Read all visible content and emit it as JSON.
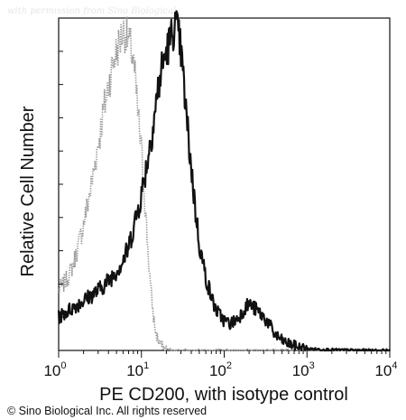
{
  "watermark": "with permission from Sino Biological",
  "copyright": "© Sino Biological Inc. All rights reserved",
  "colors": {
    "isotype": "#9a9a9a",
    "cd200": "#111111",
    "axis": "#111111"
  },
  "chart_data": {
    "type": "line",
    "title": "",
    "xlabel": "PE CD200, with isotype control",
    "ylabel": "Relative Cell Number",
    "x_scale": "log",
    "xlim": [
      1,
      10000
    ],
    "ylim": [
      0,
      100
    ],
    "grid": false,
    "legend": "none",
    "x_ticks": [
      {
        "base": "10",
        "exp": "0",
        "value": 1
      },
      {
        "base": "10",
        "exp": "1",
        "value": 10
      },
      {
        "base": "10",
        "exp": "2",
        "value": 100
      },
      {
        "base": "10",
        "exp": "3",
        "value": 1000
      },
      {
        "base": "10",
        "exp": "4",
        "value": 10000
      }
    ],
    "series": [
      {
        "color": "#9a9a9a",
        "style": "dotted",
        "x": [
          1,
          1.3,
          1.6,
          2,
          2.5,
          3,
          3.5,
          4,
          4.5,
          5,
          5.5,
          6,
          6.5,
          7,
          7.5,
          8,
          8.5,
          9,
          10,
          11,
          12,
          13,
          14,
          15,
          16,
          17,
          18,
          20,
          22,
          25
        ],
        "y": [
          18,
          22,
          28,
          38,
          50,
          62,
          72,
          80,
          86,
          90,
          93,
          96,
          95,
          93,
          91,
          87,
          80,
          72,
          60,
          45,
          30,
          18,
          10,
          5,
          3,
          2,
          1,
          0.5,
          0.3,
          0
        ]
      },
      {
        "color": "#111111",
        "style": "solid",
        "x": [
          1,
          1.5,
          2,
          3,
          4,
          5,
          6,
          7,
          8,
          9,
          10,
          12,
          14,
          16,
          18,
          20,
          22,
          24,
          26,
          28,
          30,
          32,
          35,
          40,
          45,
          50,
          60,
          70,
          80,
          100,
          120,
          150,
          180,
          200,
          250,
          300,
          350,
          400,
          500,
          600,
          800,
          1000,
          1500,
          2000,
          3000,
          5000,
          10000
        ],
        "y": [
          10,
          13,
          15,
          18,
          21,
          24,
          27,
          31,
          37,
          42,
          47,
          58,
          69,
          79,
          86,
          90,
          93,
          96,
          98,
          95,
          90,
          82,
          70,
          55,
          42,
          32,
          22,
          16,
          12,
          9,
          8,
          10,
          13,
          14,
          12,
          10,
          8,
          5,
          3,
          2,
          1,
          0.5,
          0.3,
          0.2,
          0.1,
          0,
          0
        ]
      }
    ]
  }
}
